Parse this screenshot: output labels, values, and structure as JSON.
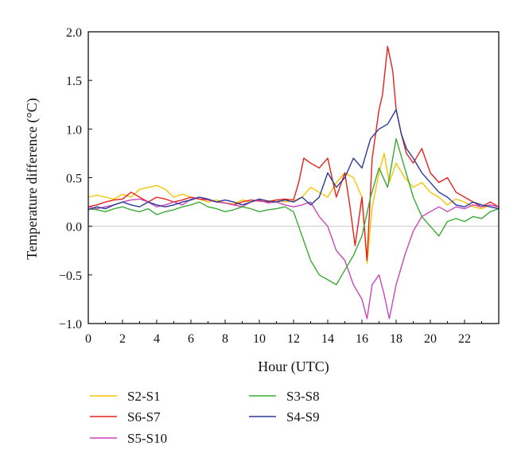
{
  "chart_data": {
    "type": "line",
    "title": "",
    "xlabel": "Hour (UTC)",
    "ylabel": "Temperature difference (°C)",
    "xlim": [
      0,
      24
    ],
    "ylim": [
      -1.0,
      2.0
    ],
    "x_ticks": [
      0,
      2,
      4,
      6,
      8,
      10,
      12,
      14,
      16,
      18,
      20,
      22
    ],
    "x_tick_labels": [
      "0",
      "2",
      "4",
      "6",
      "8",
      "10",
      "12",
      "14",
      "16",
      "18",
      "20",
      "22"
    ],
    "y_ticks": [
      -1.0,
      -0.5,
      0.0,
      0.5,
      1.0,
      1.5,
      2.0
    ],
    "y_tick_labels": [
      "−1.0",
      "−0.5",
      "0.0",
      "0.5",
      "1.0",
      "1.5",
      "2.0"
    ],
    "grid": false,
    "zero_line": true,
    "legend_position": "bottom",
    "series": [
      {
        "name": "S2-S1",
        "color": "#f5c400",
        "x": [
          0,
          0.5,
          1,
          1.5,
          2,
          2.5,
          3,
          3.5,
          4,
          4.5,
          5,
          5.5,
          6,
          6.5,
          7,
          7.5,
          8,
          8.5,
          9,
          9.5,
          10,
          10.5,
          11,
          11.5,
          12,
          12.5,
          13,
          13.5,
          14,
          14.5,
          15,
          15.5,
          16,
          16.3,
          16.6,
          17,
          17.3,
          17.6,
          18,
          18.5,
          19,
          19.5,
          20,
          20.5,
          21,
          21.5,
          22,
          22.5,
          23,
          23.5,
          24
        ],
        "values": [
          0.3,
          0.32,
          0.3,
          0.28,
          0.33,
          0.3,
          0.38,
          0.4,
          0.42,
          0.38,
          0.3,
          0.33,
          0.3,
          0.28,
          0.25,
          0.27,
          0.24,
          0.23,
          0.27,
          0.25,
          0.28,
          0.26,
          0.27,
          0.25,
          0.26,
          0.3,
          0.4,
          0.35,
          0.3,
          0.45,
          0.55,
          0.5,
          0.3,
          -0.38,
          0.2,
          0.55,
          0.75,
          0.45,
          0.65,
          0.5,
          0.4,
          0.45,
          0.35,
          0.3,
          0.22,
          0.28,
          0.25,
          0.2,
          0.18,
          0.22,
          0.2
        ]
      },
      {
        "name": "S6-S7",
        "color": "#e8201a",
        "x": [
          0,
          0.5,
          1,
          1.5,
          2,
          2.5,
          3,
          3.5,
          4,
          4.5,
          5,
          5.5,
          6,
          6.5,
          7,
          7.5,
          8,
          8.5,
          9,
          9.5,
          10,
          10.5,
          11,
          11.5,
          12,
          12.3,
          12.6,
          13,
          13.5,
          14,
          14.5,
          15,
          15.3,
          15.6,
          16,
          16.3,
          16.6,
          17,
          17.2,
          17.5,
          17.8,
          18,
          18.3,
          18.6,
          19,
          19.5,
          20,
          20.5,
          21,
          21.5,
          22,
          22.5,
          23,
          23.5,
          24
        ],
        "values": [
          0.2,
          0.22,
          0.25,
          0.27,
          0.28,
          0.35,
          0.3,
          0.25,
          0.3,
          0.28,
          0.25,
          0.27,
          0.3,
          0.28,
          0.27,
          0.25,
          0.24,
          0.22,
          0.25,
          0.27,
          0.26,
          0.25,
          0.27,
          0.28,
          0.27,
          0.45,
          0.7,
          0.65,
          0.6,
          0.7,
          0.3,
          0.55,
          0.2,
          -0.2,
          0.3,
          -0.35,
          0.7,
          1.2,
          1.35,
          1.85,
          1.6,
          1.2,
          0.95,
          0.75,
          0.65,
          0.8,
          0.55,
          0.45,
          0.5,
          0.35,
          0.3,
          0.25,
          0.2,
          0.25,
          0.2
        ]
      },
      {
        "name": "S5-S10",
        "color": "#cc44bb",
        "x": [
          0,
          0.5,
          1,
          1.5,
          2,
          2.5,
          3,
          3.5,
          4,
          4.5,
          5,
          5.5,
          6,
          6.5,
          7,
          7.5,
          8,
          8.5,
          9,
          9.5,
          10,
          10.5,
          11,
          11.5,
          12,
          12.5,
          13,
          13.5,
          14,
          14.5,
          15,
          15.5,
          16,
          16.3,
          16.6,
          17,
          17.3,
          17.6,
          18,
          18.5,
          19,
          19.5,
          20,
          20.5,
          21,
          21.5,
          22,
          22.5,
          23,
          23.5,
          24
        ],
        "values": [
          0.2,
          0.18,
          0.2,
          0.22,
          0.25,
          0.27,
          0.28,
          0.25,
          0.2,
          0.22,
          0.25,
          0.22,
          0.28,
          0.3,
          0.27,
          0.25,
          0.24,
          0.22,
          0.2,
          0.25,
          0.27,
          0.24,
          0.25,
          0.22,
          0.2,
          0.22,
          0.25,
          0.1,
          0.0,
          -0.25,
          -0.35,
          -0.6,
          -0.75,
          -0.95,
          -0.6,
          -0.5,
          -0.7,
          -0.95,
          -0.6,
          -0.3,
          -0.05,
          0.1,
          0.15,
          0.2,
          0.15,
          0.2,
          0.18,
          0.22,
          0.2,
          0.22,
          0.2
        ]
      },
      {
        "name": "S3-S8",
        "color": "#3aaa35",
        "x": [
          0,
          0.5,
          1,
          1.5,
          2,
          2.5,
          3,
          3.5,
          4,
          4.5,
          5,
          5.5,
          6,
          6.5,
          7,
          7.5,
          8,
          8.5,
          9,
          9.5,
          10,
          10.5,
          11,
          11.5,
          12,
          12.3,
          12.6,
          13,
          13.5,
          14,
          14.5,
          15,
          15.5,
          16,
          16.5,
          17,
          17.5,
          18,
          18.5,
          19,
          19.5,
          20,
          20.5,
          21,
          21.5,
          22,
          22.5,
          23,
          23.5,
          24
        ],
        "values": [
          0.18,
          0.17,
          0.15,
          0.18,
          0.2,
          0.17,
          0.15,
          0.18,
          0.12,
          0.15,
          0.17,
          0.2,
          0.22,
          0.25,
          0.2,
          0.18,
          0.15,
          0.17,
          0.2,
          0.18,
          0.15,
          0.17,
          0.18,
          0.2,
          0.15,
          0.0,
          -0.15,
          -0.35,
          -0.5,
          -0.55,
          -0.6,
          -0.45,
          -0.3,
          -0.1,
          0.3,
          0.6,
          0.4,
          0.9,
          0.6,
          0.3,
          0.1,
          0.0,
          -0.1,
          0.05,
          0.08,
          0.05,
          0.1,
          0.08,
          0.15,
          0.18
        ]
      },
      {
        "name": "S4-S9",
        "color": "#2b3a9a",
        "x": [
          0,
          0.5,
          1,
          1.5,
          2,
          2.5,
          3,
          3.5,
          4,
          4.5,
          5,
          5.5,
          6,
          6.5,
          7,
          7.5,
          8,
          8.5,
          9,
          9.5,
          10,
          10.5,
          11,
          11.5,
          12,
          12.5,
          13,
          13.5,
          14,
          14.5,
          15,
          15.5,
          16,
          16.5,
          17,
          17.5,
          18,
          18.3,
          18.6,
          19,
          19.5,
          20,
          20.5,
          21,
          21.5,
          22,
          22.5,
          23,
          23.5,
          24
        ],
        "values": [
          0.17,
          0.2,
          0.18,
          0.22,
          0.25,
          0.22,
          0.2,
          0.25,
          0.22,
          0.2,
          0.22,
          0.25,
          0.27,
          0.3,
          0.28,
          0.25,
          0.27,
          0.25,
          0.22,
          0.25,
          0.28,
          0.26,
          0.25,
          0.27,
          0.25,
          0.3,
          0.22,
          0.3,
          0.55,
          0.4,
          0.5,
          0.7,
          0.6,
          0.9,
          1.0,
          1.05,
          1.2,
          0.95,
          0.8,
          0.7,
          0.55,
          0.45,
          0.35,
          0.3,
          0.22,
          0.2,
          0.25,
          0.22,
          0.2,
          0.18
        ]
      }
    ]
  }
}
